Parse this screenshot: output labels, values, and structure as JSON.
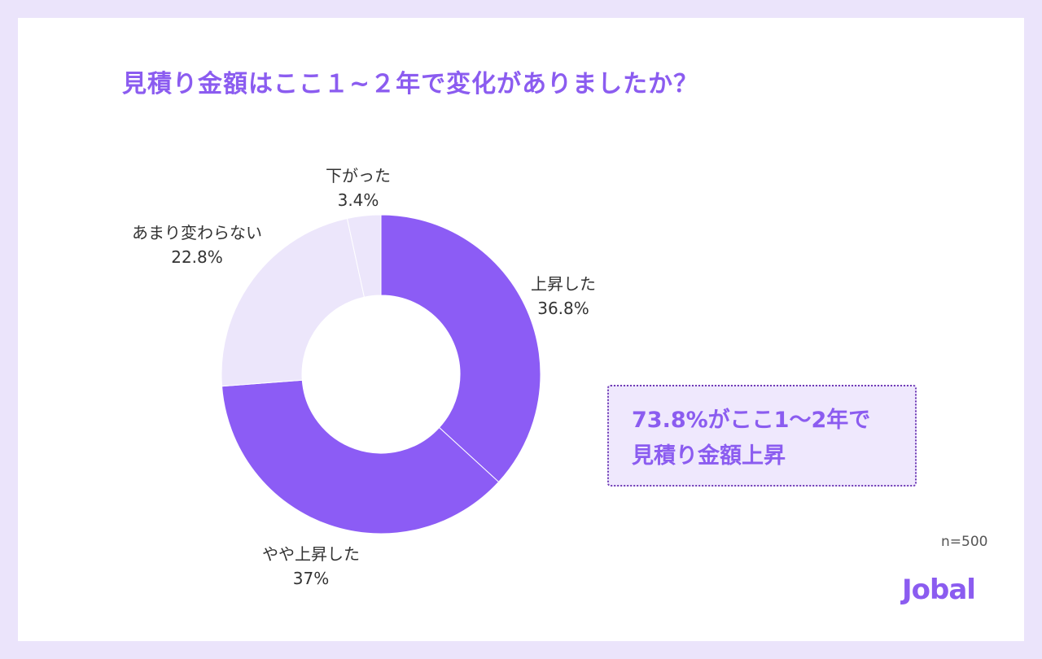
{
  "chart_data": {
    "type": "pie",
    "donut": true,
    "title": "見積り金額はここ１~２年で変化がありましたか？",
    "slices": [
      {
        "label": "上昇した",
        "value": 36.8,
        "value_label": "36.8%",
        "color": "#8c5cf5"
      },
      {
        "label": "やや上昇した",
        "value": 37,
        "value_label": "37%",
        "color": "#8c5cf5"
      },
      {
        "label": "あまり変わらない",
        "value": 22.8,
        "value_label": "22.8%",
        "color": "#ece6fb"
      },
      {
        "label": "下がった",
        "value": 3.4,
        "value_label": "3.4%",
        "color": "#ece6fb"
      }
    ],
    "sample_size": "n=500"
  },
  "callout": {
    "line1": "73.8%がここ1〜2年で",
    "line2": "見積り金額上昇"
  },
  "brand": {
    "logo": "Jobal"
  }
}
